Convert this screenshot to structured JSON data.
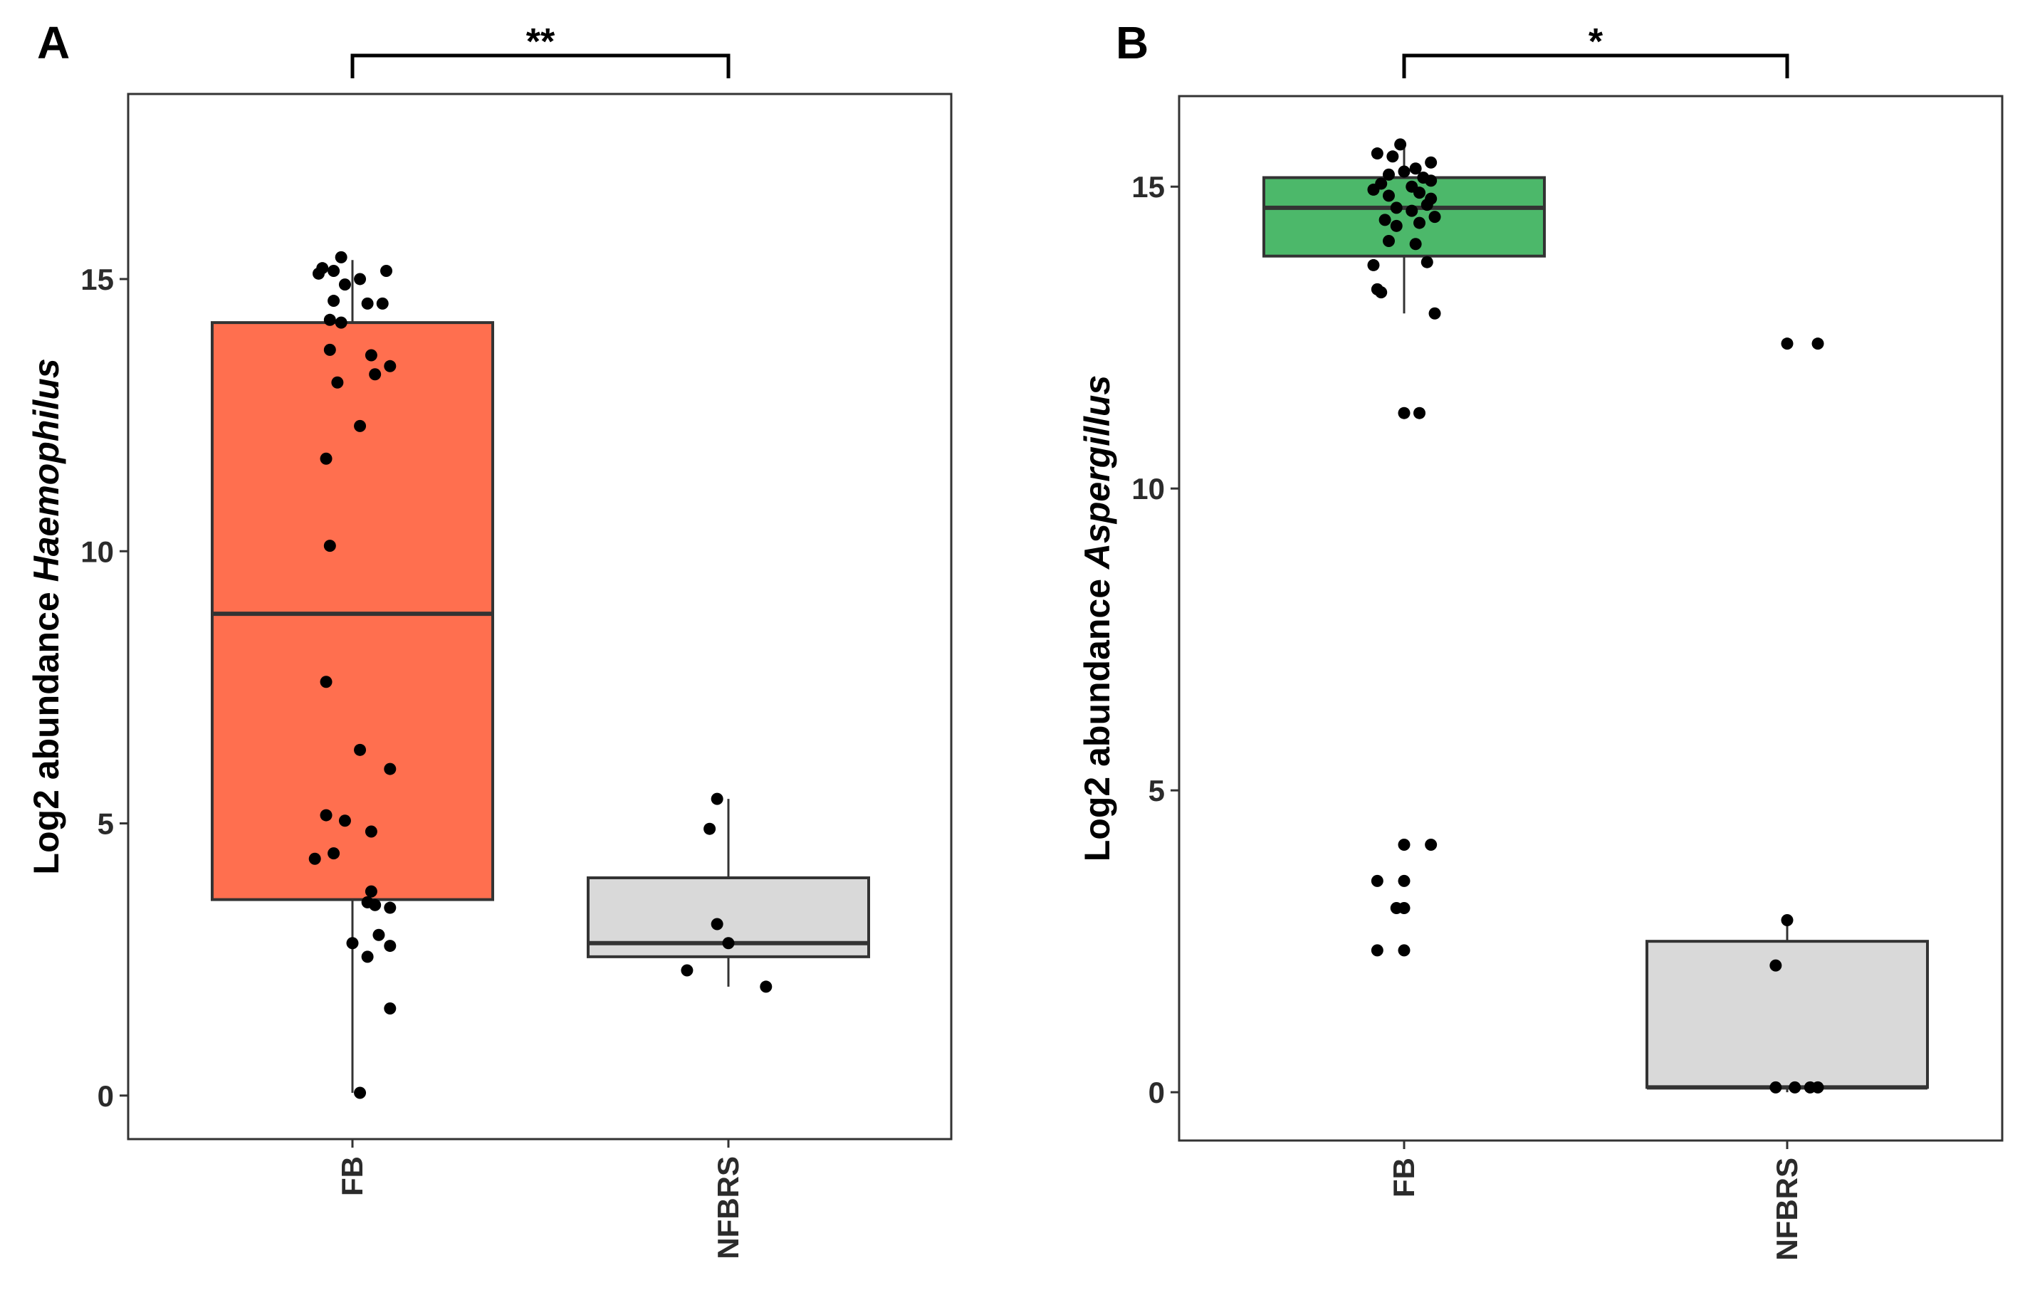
{
  "chart_data": [
    {
      "panel": "A",
      "type": "box",
      "ylabel_prefix": "Log2 abundance",
      "ylabel_taxon": "Haemophilus",
      "categories": [
        "FB",
        "NFBRS"
      ],
      "yticks": [
        0,
        5,
        10,
        15
      ],
      "ylim": [
        -0.8,
        18.4
      ],
      "significance": "**",
      "colors": {
        "FB": "#FF6F4F",
        "NFBRS": "#D9D9D9"
      },
      "boxes": [
        {
          "category": "FB",
          "q1": 3.6,
          "median": 8.85,
          "q3": 14.2,
          "whisker_low": 0.05,
          "whisker_high": 15.35
        },
        {
          "category": "NFBRS",
          "q1": 2.55,
          "median": 2.8,
          "q3": 4.0,
          "whisker_low": 2.0,
          "whisker_high": 5.45
        }
      ],
      "points": [
        {
          "category": "FB",
          "values": [
            15.4,
            15.2,
            15.1,
            15.15,
            15.15,
            15.0,
            14.9,
            14.6,
            14.55,
            14.55,
            14.25,
            14.2,
            13.7,
            13.6,
            13.4,
            13.25,
            13.1,
            12.3,
            11.7,
            10.1,
            7.6,
            6.35,
            6.0,
            5.15,
            5.05,
            4.85,
            4.45,
            4.35,
            3.75,
            3.55,
            3.5,
            3.45,
            2.95,
            2.8,
            2.75,
            2.55,
            1.6,
            0.05
          ],
          "offsets": [
            -0.03,
            -0.08,
            -0.09,
            -0.05,
            0.09,
            0.02,
            -0.02,
            -0.05,
            0.04,
            0.08,
            -0.06,
            -0.03,
            -0.06,
            0.05,
            0.1,
            0.06,
            -0.04,
            0.02,
            -0.07,
            -0.06,
            -0.07,
            0.02,
            0.1,
            -0.07,
            -0.02,
            0.05,
            -0.05,
            -0.1,
            0.05,
            0.04,
            0.06,
            0.1,
            0.07,
            0.0,
            0.1,
            0.04,
            0.1,
            0.02
          ]
        },
        {
          "category": "NFBRS",
          "values": [
            5.45,
            4.9,
            3.15,
            2.8,
            2.3,
            2.0
          ],
          "offsets": [
            -0.03,
            -0.05,
            -0.03,
            0.0,
            -0.11,
            0.1
          ]
        }
      ]
    },
    {
      "panel": "B",
      "type": "box",
      "ylabel_prefix": "Log2 abundance",
      "ylabel_taxon": "Aspergillus",
      "categories": [
        "FB",
        "NFBRS"
      ],
      "yticks": [
        0,
        5,
        10,
        15
      ],
      "ylim": [
        -0.8,
        16.5
      ],
      "significance": "*",
      "colors": {
        "FB": "#4CB86A",
        "NFBRS": "#D9D9D9"
      },
      "boxes": [
        {
          "category": "FB",
          "q1": 13.85,
          "median": 14.65,
          "q3": 15.15,
          "whisker_low": 12.9,
          "whisker_high": 15.7
        },
        {
          "category": "NFBRS",
          "q1": 0.08,
          "median": 0.08,
          "q3": 2.5,
          "whisker_low": 0.0,
          "whisker_high": 2.85
        }
      ],
      "points": [
        {
          "category": "FB",
          "values": [
            15.7,
            15.55,
            15.5,
            15.4,
            15.3,
            15.25,
            15.2,
            15.15,
            15.1,
            15.05,
            15.0,
            14.95,
            14.9,
            14.85,
            14.8,
            14.7,
            14.65,
            14.6,
            14.5,
            14.45,
            14.4,
            14.35,
            14.1,
            14.05,
            13.75,
            13.7,
            13.3,
            13.25,
            12.9,
            11.25,
            11.25,
            4.1,
            4.1,
            3.5,
            3.5,
            3.05,
            3.05,
            2.35,
            2.35
          ],
          "offsets": [
            -0.01,
            -0.07,
            -0.03,
            0.07,
            0.03,
            0.0,
            -0.04,
            0.05,
            0.07,
            -0.06,
            0.02,
            -0.08,
            0.04,
            -0.04,
            0.07,
            0.06,
            -0.02,
            0.02,
            0.08,
            -0.05,
            0.04,
            -0.02,
            -0.04,
            0.03,
            0.06,
            -0.08,
            -0.07,
            -0.06,
            0.08,
            0.0,
            0.04,
            0.0,
            0.07,
            -0.07,
            0.0,
            -0.02,
            0.0,
            -0.07,
            0.0
          ]
        },
        {
          "category": "NFBRS",
          "values": [
            12.4,
            12.4,
            2.85,
            2.1,
            0.08,
            0.08,
            0.08,
            0.08
          ],
          "offsets": [
            0.0,
            0.08,
            0.0,
            -0.03,
            -0.03,
            0.02,
            0.06,
            0.08
          ]
        }
      ]
    }
  ]
}
